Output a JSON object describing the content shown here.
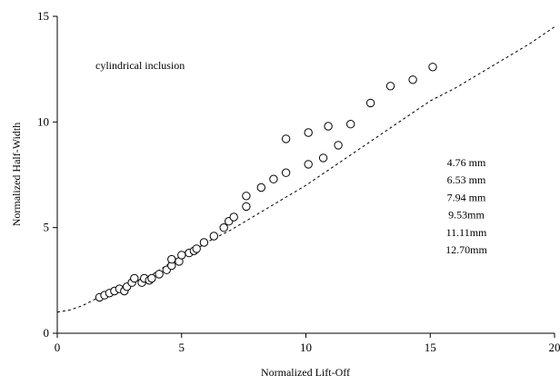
{
  "chart_data": {
    "type": "scatter",
    "title": "",
    "xlabel": "Normalized Lift-Off",
    "ylabel": "Normalized Half-Width",
    "xlim": [
      0,
      20
    ],
    "ylim": [
      0,
      15
    ],
    "x_ticks": [
      "0",
      "5",
      "10",
      "15",
      "20"
    ],
    "y_ticks": [
      "0",
      "5",
      "10",
      "15"
    ],
    "x_tick_values": [
      0,
      5,
      10,
      15,
      20
    ],
    "y_tick_values": [
      0,
      5,
      10,
      15
    ],
    "grid": false,
    "annotation": "cylindrical inclusion",
    "legend_labels": [
      "4.76 mm",
      "6.53 mm",
      "7.94 mm",
      "9.53mm",
      "11.11mm",
      "12.70mm"
    ],
    "series": [
      {
        "marker": "circle",
        "points": [
          [
            1.7,
            1.7
          ],
          [
            1.9,
            1.8
          ],
          [
            2.1,
            1.9
          ],
          [
            2.3,
            2.0
          ],
          [
            2.5,
            2.1
          ],
          [
            2.7,
            2.0
          ],
          [
            2.8,
            2.2
          ],
          [
            3.0,
            2.4
          ],
          [
            3.1,
            2.6
          ],
          [
            3.4,
            2.4
          ],
          [
            3.5,
            2.6
          ],
          [
            3.7,
            2.5
          ],
          [
            3.8,
            2.6
          ],
          [
            4.1,
            2.8
          ],
          [
            4.4,
            3.0
          ],
          [
            4.6,
            3.2
          ],
          [
            4.6,
            3.5
          ],
          [
            4.9,
            3.4
          ],
          [
            5.0,
            3.7
          ],
          [
            5.3,
            3.8
          ],
          [
            5.5,
            3.9
          ],
          [
            5.6,
            4.0
          ],
          [
            5.9,
            4.3
          ],
          [
            6.3,
            4.6
          ],
          [
            6.7,
            5.0
          ],
          [
            6.9,
            5.3
          ],
          [
            7.1,
            5.5
          ],
          [
            7.6,
            6.0
          ],
          [
            7.6,
            6.5
          ],
          [
            8.2,
            6.9
          ],
          [
            8.7,
            7.3
          ],
          [
            9.2,
            7.6
          ],
          [
            9.2,
            9.2
          ],
          [
            10.1,
            8.0
          ],
          [
            10.1,
            9.5
          ],
          [
            10.7,
            8.3
          ],
          [
            10.9,
            9.8
          ],
          [
            11.3,
            8.9
          ],
          [
            11.8,
            9.9
          ],
          [
            12.6,
            10.9
          ],
          [
            13.4,
            11.7
          ],
          [
            14.3,
            12.0
          ],
          [
            15.1,
            12.6
          ]
        ]
      },
      {
        "style": "dashed",
        "points": [
          [
            0,
            1.0
          ],
          [
            0.5,
            1.1
          ],
          [
            1.0,
            1.3
          ],
          [
            1.5,
            1.6
          ],
          [
            2.0,
            1.9
          ],
          [
            2.5,
            2.1
          ],
          [
            3.0,
            2.4
          ],
          [
            3.5,
            2.6
          ],
          [
            4.0,
            2.9
          ],
          [
            4.5,
            3.3
          ],
          [
            5.0,
            3.6
          ],
          [
            5.5,
            3.9
          ],
          [
            6.0,
            4.3
          ],
          [
            7.0,
            4.9
          ],
          [
            8.0,
            5.6
          ],
          [
            9.0,
            6.3
          ],
          [
            10.0,
            7.0
          ],
          [
            11.0,
            7.8
          ],
          [
            12.0,
            8.6
          ],
          [
            13.0,
            9.4
          ],
          [
            14.0,
            10.2
          ],
          [
            15.0,
            11.0
          ],
          [
            16.0,
            11.6
          ],
          [
            17.0,
            12.3
          ],
          [
            18.0,
            13.0
          ],
          [
            19.0,
            13.7
          ],
          [
            20.0,
            14.5
          ]
        ]
      }
    ]
  }
}
